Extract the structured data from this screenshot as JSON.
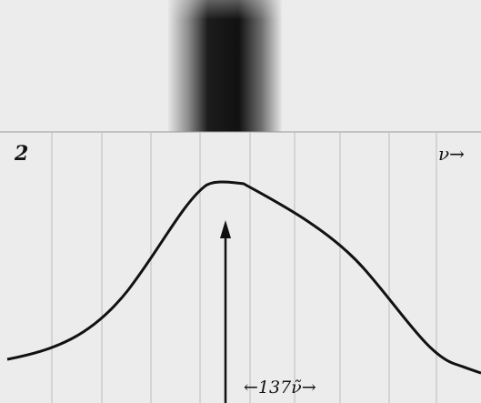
{
  "figure": {
    "panel_label": "2",
    "axis_label": "ν→",
    "annotation": "←137ν̃→"
  }
}
